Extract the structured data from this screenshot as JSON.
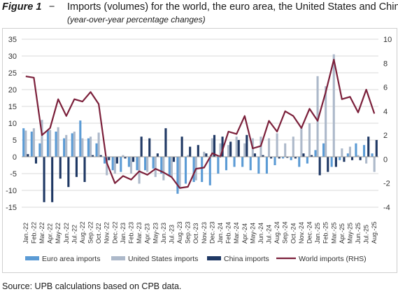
{
  "figure": {
    "label": "Figure 1",
    "dash": "−",
    "title": "Imports (volumes) for the world, the euro area, the United States and China",
    "subtitle": "(year-over-year percentage changes)"
  },
  "source": "Source: UPB calculations based on CPB data.",
  "colors": {
    "euro": "#5b9bd5",
    "us": "#adb9ca",
    "china": "#1f3864",
    "world": "#7b1f3a",
    "grid": "#d9d9d9"
  },
  "chart_data": {
    "type": "bar",
    "categories": [
      "Jan.-22",
      "Feb.-22",
      "Mar.-22",
      "Apr.-22",
      "May.-22",
      "Jun.-22",
      "Jul.-22",
      "Aug.-22",
      "Sep.-22",
      "Oct.-22",
      "Nov.-22",
      "Dec.-22",
      "Jan.-23",
      "Feb.-23",
      "Mar.-23",
      "Apr.-23",
      "May.-23",
      "Jun.-23",
      "Jul.-23",
      "Aug.-23",
      "Sep.-23",
      "Oct.-23",
      "Nov.-23",
      "Dec.-23",
      "Jan.-24",
      "Feb.-24",
      "Mar.-24",
      "Apr.-24",
      "May.-24",
      "Jun.-24",
      "Jul.-24",
      "Aug.-24",
      "Sep.-24",
      "Oct.-24",
      "Nov.-24",
      "Dec.-24",
      "Jan.-25",
      "Feb.-25",
      "Mar.-25",
      "Apr.-25",
      "May.-25",
      "Jun.-25",
      "Jul.-25",
      "Aug.-25"
    ],
    "x_tick_labels": [
      "Jan.-22",
      "Feb.-22",
      "Mar.-22",
      "Apr.-22",
      "May-22",
      "Jun.-22",
      "Jul.-22",
      "Aug.-22",
      "Sep.-22",
      "Oct.-22",
      "Nov.-22",
      "Dec.-22",
      "Jan.-23",
      "Feb.-23",
      "Mar.-23",
      "Apr.-23",
      "May-23",
      "Jun.-23",
      "Jul.-23",
      "Aug.-23",
      "Sep.-23",
      "Oct.-23",
      "Nov.-23",
      "Dec.-23",
      "Jan.-24",
      "Feb.-24",
      "Mar.-24",
      "Apr.-24",
      "May-24",
      "Jun.-24",
      "Jul.-24",
      "Aug.-24",
      "Sep.-24",
      "Oct.-24",
      "Nov.-24",
      "Dec.-24",
      "Jan.-25",
      "Feb.-25",
      "Mar.-25",
      "Apr.-25",
      "May-25",
      "Jun.-25",
      "Jul.-25",
      "Aug.-25"
    ],
    "series": [
      {
        "name": "Euro area imports",
        "axis": "left",
        "values": [
          8.5,
          7.5,
          4.0,
          7.8,
          7.5,
          5.5,
          7.0,
          10.8,
          5.5,
          4.0,
          -2.0,
          -4.0,
          -4.5,
          -3.0,
          -4.0,
          -4.0,
          -3.5,
          -5.0,
          -5.5,
          -11.0,
          -8.0,
          -7.5,
          -7.5,
          -8.5,
          -5.0,
          -4.0,
          -3.0,
          -3.0,
          -4.0,
          -5.0,
          -5.0,
          -2.5,
          -0.5,
          -1.0,
          -3.0,
          -2.0,
          2.0,
          4.0,
          -3.0,
          -1.0,
          1.0,
          4.0,
          3.5,
          1.0
        ]
      },
      {
        "name": "United States imports",
        "axis": "left",
        "values": [
          7.8,
          8.5,
          11.0,
          8.0,
          8.8,
          6.5,
          7.5,
          5.5,
          6.0,
          7.2,
          -5.5,
          -5.0,
          0.5,
          -5.0,
          -8.0,
          -4.5,
          -6.0,
          -7.0,
          -6.0,
          -9.0,
          0.5,
          -7.0,
          1.5,
          5.5,
          4.0,
          3.5,
          6.0,
          4.0,
          5.5,
          6.0,
          5.5,
          7.0,
          4.0,
          6.0,
          9.0,
          10.0,
          24.0,
          21.0,
          30.5,
          2.5,
          3.0,
          0.5,
          -2.0,
          -4.5
        ]
      },
      {
        "name": "China imports",
        "axis": "left",
        "values": [
          0.8,
          -2.0,
          -13.5,
          -13.5,
          -6.5,
          -9.0,
          -6.0,
          -7.5,
          0.5,
          0.5,
          -1.0,
          -2.0,
          -0.5,
          -1.5,
          6.0,
          5.5,
          1.0,
          8.5,
          -1.5,
          6.0,
          3.0,
          3.5,
          1.0,
          6.5,
          6.0,
          4.5,
          5.0,
          6.5,
          1.0,
          0.5,
          -0.5,
          -0.5,
          -0.3,
          -0.5,
          1.0,
          0.5,
          -5.5,
          -4.5,
          -3.0,
          -1.5,
          -1.0,
          -1.0,
          6.0,
          5.0
        ]
      },
      {
        "name": "World imports (RHS)",
        "axis": "right",
        "type": "line",
        "values": [
          6.9,
          6.8,
          2.0,
          2.6,
          5.0,
          3.6,
          5.0,
          4.8,
          5.6,
          4.6,
          -0.3,
          -2.0,
          -1.4,
          -1.7,
          -1.0,
          -1.3,
          -0.8,
          -1.1,
          -1.5,
          -2.4,
          -2.3,
          -0.8,
          -0.7,
          0.5,
          0.2,
          2.3,
          2.1,
          3.6,
          0.9,
          1.1,
          3.2,
          2.3,
          4.0,
          3.6,
          2.6,
          4.2,
          3.2,
          5.6,
          8.3,
          5.0,
          5.2,
          3.9,
          5.8,
          3.8
        ]
      }
    ],
    "ylim_left": [
      -15,
      35
    ],
    "yticks_left": [
      -15,
      -10,
      -5,
      0,
      5,
      10,
      15,
      20,
      25,
      30,
      35
    ],
    "ylim_right": [
      -4,
      10
    ],
    "yticks_right": [
      -4,
      -2,
      0,
      2,
      4,
      6,
      8,
      10
    ],
    "grid": true,
    "legend_position": "bottom"
  }
}
